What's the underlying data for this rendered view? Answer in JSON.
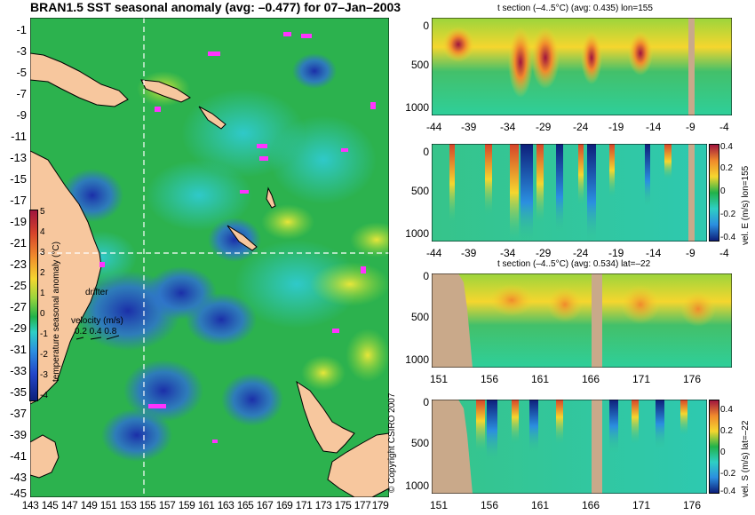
{
  "map": {
    "title": "BRAN1.5 SST seasonal anomaly (avg: –0.477) for 07–Jan–2003",
    "lat_labels": [
      "-1",
      "-3",
      "-5",
      "-7",
      "-9",
      "-11",
      "-13",
      "-15",
      "-17",
      "-19",
      "-21",
      "-23",
      "-25",
      "-27",
      "-29",
      "-31",
      "-33",
      "-35",
      "-37",
      "-39",
      "-41",
      "-43",
      "-45"
    ],
    "lon_labels": [
      "143",
      "145",
      "147",
      "149",
      "151",
      "153",
      "155",
      "157",
      "159",
      "161",
      "163",
      "165",
      "167",
      "169",
      "171",
      "173",
      "175",
      "177",
      "179"
    ],
    "colorbar": {
      "label": "temperature seasonal anomaly (°C)",
      "ticks": [
        "5",
        "4",
        "3",
        "2",
        "1",
        "0",
        "-1",
        "-2",
        "-3",
        "-4"
      ]
    },
    "drifter_label": "drifter",
    "velocity_label": "velocity (m/s)",
    "velocity_values": "0.2 0.4 0.8",
    "copyright": "© Copyright CSIRO 2007",
    "colors": {
      "ocean_green": "#22b24a",
      "land": "#f7c79e",
      "anomaly_cold": "#1c3fbf",
      "anomaly_warm": "#f3d12a",
      "drifter": "#ff33ff"
    }
  },
  "panels": {
    "p1": {
      "title": "t section (–4..5°C) (avg: 0.435) lon=155",
      "y_ticks": [
        "0",
        "500",
        "1000"
      ],
      "x_ticks": [
        "-44",
        "-39",
        "-34",
        "-29",
        "-24",
        "-19",
        "-14",
        "-9",
        "-4"
      ]
    },
    "p2": {
      "side_label": "vel. E (m/s) lon=155",
      "y_ticks": [
        "0",
        "500",
        "1000"
      ],
      "x_ticks": [
        "-44",
        "-39",
        "-34",
        "-29",
        "-24",
        "-19",
        "-14",
        "-9",
        "-4"
      ],
      "cbar_ticks": [
        "0.4",
        "0.2",
        "0",
        "-0.2",
        "-0.4"
      ]
    },
    "p3": {
      "title": "t section (–4..5°C) (avg: 0.534) lat=–22",
      "y_ticks": [
        "0",
        "500",
        "1000"
      ],
      "x_ticks": [
        "151",
        "156",
        "161",
        "166",
        "171",
        "176"
      ]
    },
    "p4": {
      "side_label": "vel. S (m/s) lat=–22",
      "y_ticks": [
        "0",
        "500",
        "1000"
      ],
      "x_ticks": [
        "151",
        "156",
        "161",
        "166",
        "171",
        "176"
      ],
      "cbar_ticks": [
        "0.4",
        "0.2",
        "0",
        "-0.2",
        "-0.4"
      ]
    }
  }
}
